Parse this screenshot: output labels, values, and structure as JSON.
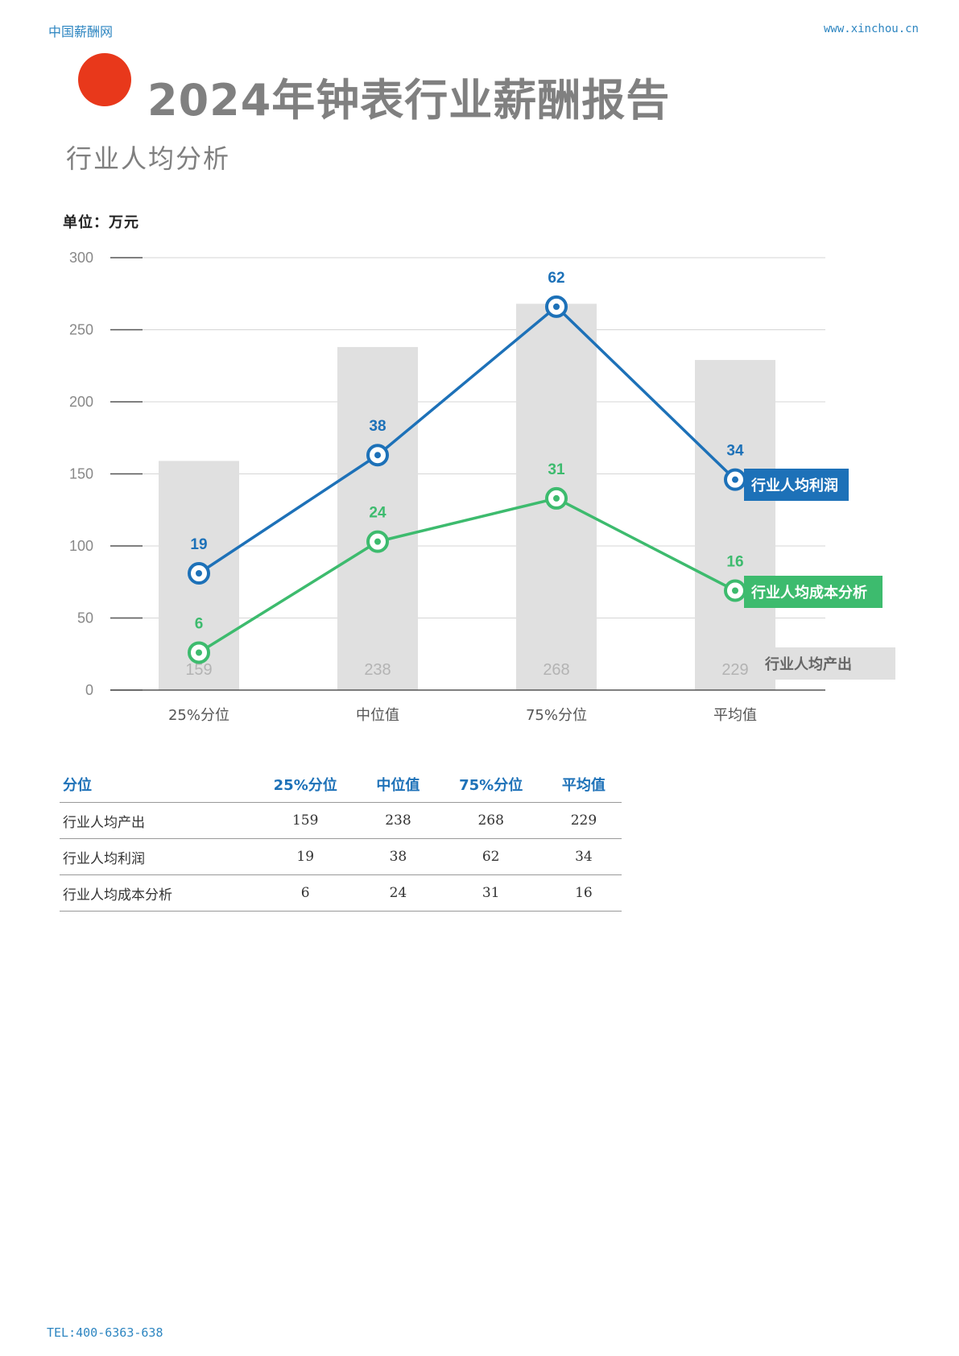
{
  "header": {
    "site_name": "中国薪酬网",
    "url": "www.xinchou.cn"
  },
  "title": "2024年钟表行业薪酬报告",
  "subtitle": "行业人均分析",
  "unit_label": "单位：万元",
  "colors": {
    "accent_dot": "#e8381b",
    "profit": "#1d71b8",
    "cost": "#3dbb6e",
    "output_bar": "#e0e0e0"
  },
  "chart_data": {
    "type": "bar",
    "categories": [
      "25%分位",
      "中位值",
      "75%分位",
      "平均值"
    ],
    "ylim": [
      0,
      300
    ],
    "yticks": [
      0,
      50,
      100,
      150,
      200,
      250,
      300
    ],
    "series": [
      {
        "name": "行业人均产出",
        "type": "bar",
        "values": [
          159,
          238,
          268,
          229
        ]
      },
      {
        "name": "行业人均利润",
        "type": "line",
        "values": [
          81,
          163,
          266,
          146
        ],
        "labels": [
          "19",
          "38",
          "62",
          "34"
        ]
      },
      {
        "name": "行业人均成本分析",
        "type": "line",
        "values": [
          26,
          103,
          133,
          69
        ],
        "labels": [
          "6",
          "24",
          "31",
          "16"
        ]
      }
    ]
  },
  "table": {
    "headers": [
      "分位",
      "25%分位",
      "中位值",
      "75%分位",
      "平均值"
    ],
    "rows": [
      [
        "行业人均产出",
        "159",
        "238",
        "268",
        "229"
      ],
      [
        "行业人均利润",
        "19",
        "38",
        "62",
        "34"
      ],
      [
        "行业人均成本分析",
        "6",
        "24",
        "31",
        "16"
      ]
    ]
  },
  "footer": {
    "tel": "TEL:400-6363-638"
  }
}
